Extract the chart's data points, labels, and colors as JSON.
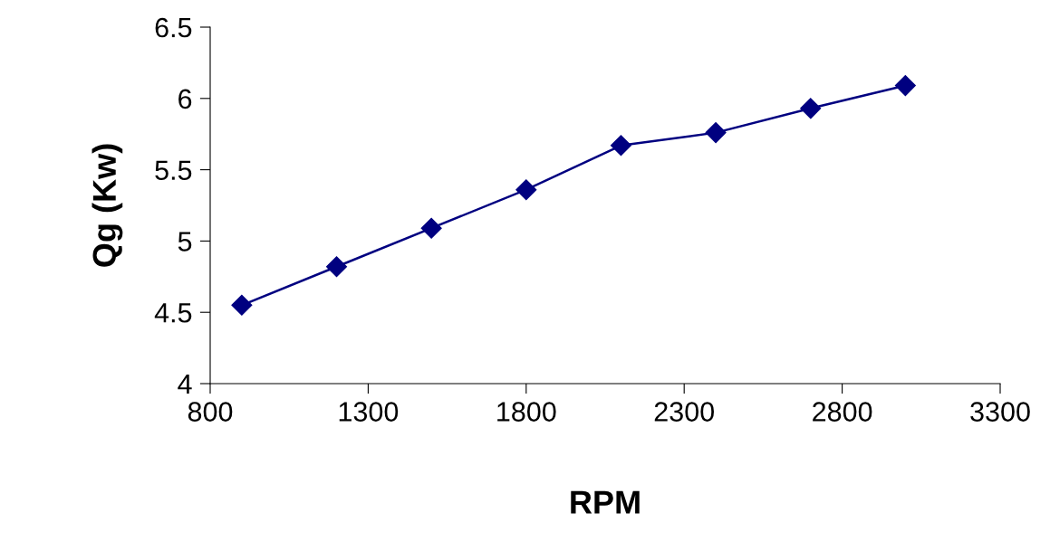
{
  "chart_data": {
    "type": "line",
    "xlabel": "RPM",
    "ylabel": "Qg (Kw)",
    "x": [
      900,
      1200,
      1500,
      1800,
      2100,
      2400,
      2700,
      3000
    ],
    "series": [
      {
        "color": "#000080",
        "values": [
          4.55,
          4.82,
          5.09,
          5.36,
          5.67,
          5.76,
          5.93,
          6.09
        ]
      }
    ],
    "xlim": [
      800,
      3300
    ],
    "xticks": [
      800,
      1300,
      1800,
      2300,
      2800,
      3300
    ],
    "ylim": [
      4,
      6.5
    ],
    "yticks": [
      4,
      4.5,
      5,
      5.5,
      6,
      6.5
    ],
    "grid": false,
    "marker": "diamond",
    "line_style": "solid"
  }
}
